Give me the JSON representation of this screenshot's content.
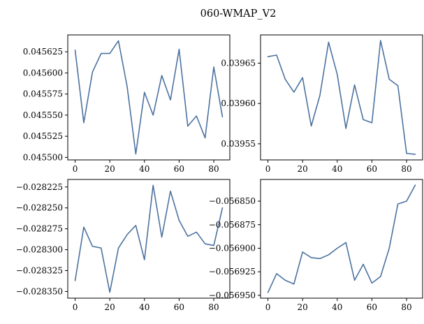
{
  "figure": {
    "title": "060-WMAP_V2",
    "line_color": "#4c72a0"
  },
  "chart_data": [
    {
      "type": "line",
      "x": [
        0,
        5,
        10,
        15,
        20,
        25,
        30,
        35,
        40,
        45,
        50,
        55,
        60,
        65,
        70,
        75,
        80,
        85
      ],
      "values": [
        0.045627,
        0.045541,
        0.045601,
        0.045623,
        0.045623,
        0.045638,
        0.045584,
        0.045504,
        0.045577,
        0.04555,
        0.045597,
        0.045568,
        0.045628,
        0.045537,
        0.045549,
        0.045523,
        0.045607,
        0.045548
      ],
      "xlim": [
        -4.25,
        89.25
      ],
      "ylim": [
        0.045497,
        0.045645
      ],
      "xticks": [
        0,
        20,
        40,
        60,
        80
      ],
      "xtick_labels": [
        "0",
        "20",
        "40",
        "60",
        "80"
      ],
      "yticks": [
        0.0455,
        0.045525,
        0.04555,
        0.045575,
        0.0456,
        0.045625
      ],
      "ytick_labels": [
        "0.045500",
        "0.045525",
        "0.045550",
        "0.045575",
        "0.045600",
        "0.045625"
      ],
      "grid": false
    },
    {
      "type": "line",
      "x": [
        0,
        5,
        10,
        15,
        20,
        25,
        30,
        35,
        40,
        45,
        50,
        55,
        60,
        65,
        70,
        75,
        80,
        85
      ],
      "values": [
        0.039658,
        0.03966,
        0.03963,
        0.039614,
        0.039632,
        0.039572,
        0.03961,
        0.039676,
        0.039636,
        0.039569,
        0.039623,
        0.03958,
        0.039576,
        0.039678,
        0.03963,
        0.039622,
        0.039538,
        0.039537
      ],
      "xlim": [
        -4.25,
        89.25
      ],
      "ylim": [
        0.03953,
        0.039685
      ],
      "xticks": [
        0,
        20,
        40,
        60,
        80
      ],
      "xtick_labels": [
        "0",
        "20",
        "40",
        "60",
        "80"
      ],
      "yticks": [
        0.03955,
        0.0396,
        0.03965
      ],
      "ytick_labels": [
        "0.03955",
        "0.03960",
        "0.03965"
      ],
      "grid": false
    },
    {
      "type": "line",
      "x": [
        0,
        5,
        10,
        15,
        20,
        25,
        30,
        35,
        40,
        45,
        50,
        55,
        60,
        65,
        70,
        75,
        80,
        85
      ],
      "values": [
        -0.028337,
        -0.028273,
        -0.028296,
        -0.028298,
        -0.028351,
        -0.028298,
        -0.028282,
        -0.028271,
        -0.028312,
        -0.028223,
        -0.028285,
        -0.02823,
        -0.028265,
        -0.028284,
        -0.028279,
        -0.028293,
        -0.028295,
        -0.02825
      ],
      "xlim": [
        -4.25,
        89.25
      ],
      "ylim": [
        -0.028358,
        -0.028216
      ],
      "xticks": [
        0,
        20,
        40,
        60,
        80
      ],
      "xtick_labels": [
        "0",
        "20",
        "40",
        "60",
        "80"
      ],
      "yticks": [
        -0.02835,
        -0.028325,
        -0.0283,
        -0.028275,
        -0.02825,
        -0.028225
      ],
      "ytick_labels": [
        "−0.028350",
        "−0.028325",
        "−0.028300",
        "−0.028275",
        "−0.028250",
        "−0.028225"
      ],
      "grid": false
    },
    {
      "type": "line",
      "x": [
        0,
        5,
        10,
        15,
        20,
        25,
        30,
        35,
        40,
        45,
        50,
        55,
        60,
        65,
        70,
        75,
        80,
        85
      ],
      "values": [
        -0.056947,
        -0.056927,
        -0.056934,
        -0.056938,
        -0.056904,
        -0.05691,
        -0.056911,
        -0.056907,
        -0.0569,
        -0.056894,
        -0.056934,
        -0.056917,
        -0.056937,
        -0.05693,
        -0.0569,
        -0.056853,
        -0.05685,
        -0.056833
      ],
      "xlim": [
        -4.25,
        89.25
      ],
      "ylim": [
        -0.056953,
        -0.056827
      ],
      "xticks": [
        0,
        20,
        40,
        60,
        80
      ],
      "xtick_labels": [
        "0",
        "20",
        "40",
        "60",
        "80"
      ],
      "yticks": [
        -0.05695,
        -0.056925,
        -0.0569,
        -0.056875,
        -0.05685
      ],
      "ytick_labels": [
        "−0.056950",
        "−0.056925",
        "−0.056900",
        "−0.056875",
        "−0.056850"
      ],
      "grid": false
    }
  ]
}
